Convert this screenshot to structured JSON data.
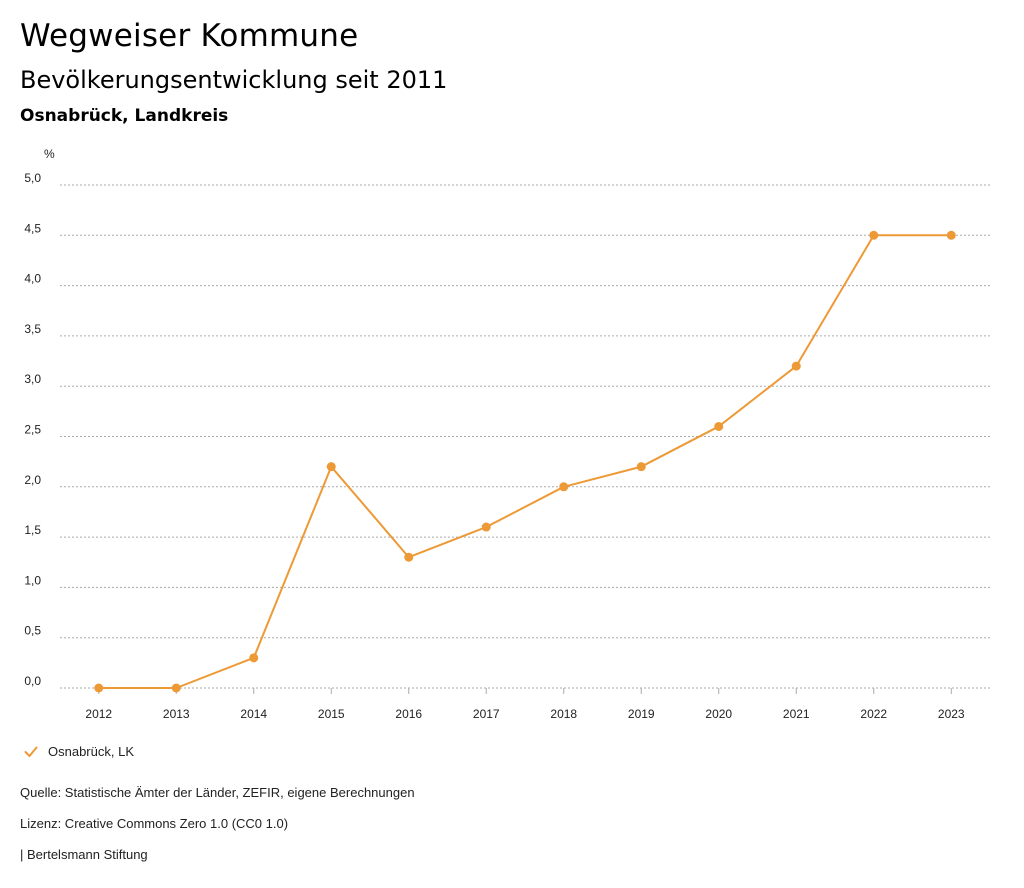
{
  "header": {
    "title": "Wegweiser Kommune",
    "subtitle": "Bevölkerungsentwicklung seit 2011",
    "region": "Osnabrück, Landkreis"
  },
  "chart_data": {
    "type": "line",
    "unit_label": "%",
    "x": [
      "2012",
      "2013",
      "2014",
      "2015",
      "2016",
      "2017",
      "2018",
      "2019",
      "2020",
      "2021",
      "2022",
      "2023"
    ],
    "series": [
      {
        "name": "Osnabrück, LK",
        "values": [
          0.0,
          0.0,
          0.3,
          2.2,
          1.3,
          1.6,
          2.0,
          2.2,
          2.6,
          3.2,
          4.5,
          4.5
        ]
      }
    ],
    "ylim": [
      0,
      5
    ],
    "y_ticks": [
      0,
      0.5,
      1,
      1.5,
      2,
      2.5,
      3,
      3.5,
      4,
      4.5,
      5
    ],
    "y_tick_labels": [
      "0,0",
      "0,5",
      "1,0",
      "1,5",
      "2,0",
      "2,5",
      "3,0",
      "3,5",
      "4,0",
      "4,5",
      "5,0"
    ],
    "grid": true,
    "color": "#ed9a36"
  },
  "legend": {
    "label": "Osnabrück, LK",
    "icon": "check-icon"
  },
  "footer": {
    "source": "Quelle: Statistische Ämter der Länder, ZEFIR, eigene Berechnungen",
    "license": "Lizenz: Creative Commons Zero 1.0 (CC0 1.0)",
    "publisher": "| Bertelsmann Stiftung"
  }
}
